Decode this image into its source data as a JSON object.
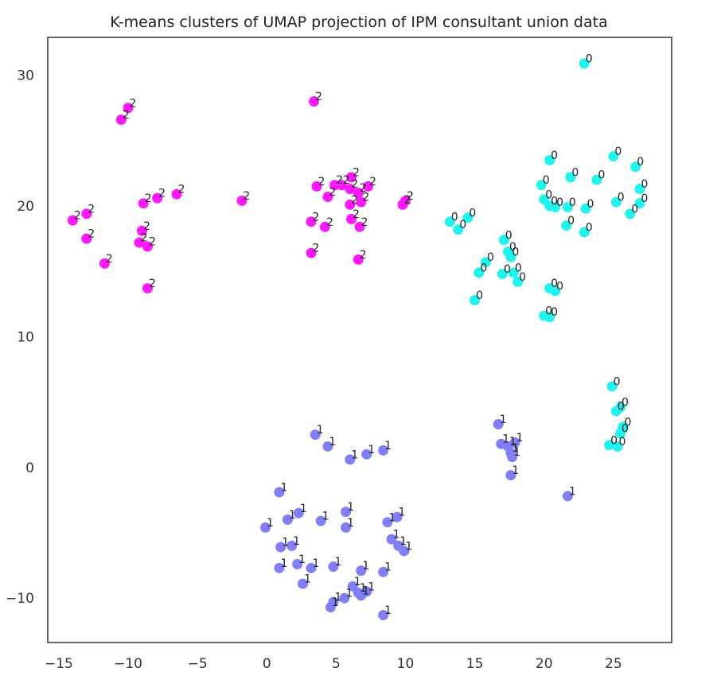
{
  "chart_data": {
    "type": "scatter",
    "title": "K-means clusters of UMAP projection of IPM consultant union data",
    "xlabel": "",
    "ylabel": "",
    "xlim": [
      -15.8,
      29.2
    ],
    "ylim": [
      -13.4,
      32.9
    ],
    "xticks": [
      -15,
      -10,
      -5,
      0,
      5,
      10,
      15,
      20,
      25
    ],
    "yticks": [
      -10,
      0,
      10,
      20,
      30
    ],
    "xtick_labels": [
      "−15",
      "−10",
      "−5",
      "0",
      "5",
      "10",
      "15",
      "20",
      "25"
    ],
    "ytick_labels": [
      "−10",
      "0",
      "10",
      "20",
      "30"
    ],
    "grid": false,
    "legend": false,
    "point_label_source": "cluster",
    "series": [
      {
        "cluster": "0",
        "color": "#1ff4ee",
        "points": [
          [
            22.9,
            30.9
          ],
          [
            20.4,
            23.5
          ],
          [
            21.9,
            22.2
          ],
          [
            23.8,
            22.0
          ],
          [
            25.0,
            23.8
          ],
          [
            26.6,
            23.0
          ],
          [
            26.9,
            21.3
          ],
          [
            19.8,
            21.6
          ],
          [
            20.0,
            20.5
          ],
          [
            20.4,
            20.0
          ],
          [
            20.8,
            19.9
          ],
          [
            21.7,
            19.9
          ],
          [
            23.0,
            19.8
          ],
          [
            25.2,
            20.3
          ],
          [
            26.9,
            20.2
          ],
          [
            26.2,
            19.4
          ],
          [
            21.6,
            18.5
          ],
          [
            22.9,
            18.0
          ],
          [
            13.2,
            18.8
          ],
          [
            13.8,
            18.2
          ],
          [
            14.5,
            19.1
          ],
          [
            17.1,
            17.4
          ],
          [
            17.4,
            16.5
          ],
          [
            17.6,
            16.1
          ],
          [
            15.8,
            15.7
          ],
          [
            15.3,
            14.9
          ],
          [
            17.0,
            14.8
          ],
          [
            17.8,
            14.9
          ],
          [
            18.1,
            14.2
          ],
          [
            20.4,
            13.7
          ],
          [
            20.8,
            13.5
          ],
          [
            15.0,
            12.8
          ],
          [
            20.0,
            11.6
          ],
          [
            20.4,
            11.5
          ],
          [
            24.9,
            6.2
          ],
          [
            25.2,
            4.3
          ],
          [
            25.5,
            4.6
          ],
          [
            25.7,
            3.1
          ],
          [
            25.5,
            2.6
          ],
          [
            24.7,
            1.7
          ],
          [
            25.3,
            1.6
          ]
        ]
      },
      {
        "cluster": "1",
        "color": "#7f7ff7",
        "points": [
          [
            3.5,
            2.5
          ],
          [
            4.4,
            1.6
          ],
          [
            6.0,
            0.6
          ],
          [
            7.2,
            1.0
          ],
          [
            8.4,
            1.3
          ],
          [
            16.7,
            3.3
          ],
          [
            16.9,
            1.8
          ],
          [
            17.4,
            1.6
          ],
          [
            17.6,
            1.1
          ],
          [
            17.7,
            0.8
          ],
          [
            17.9,
            1.9
          ],
          [
            17.6,
            -0.6
          ],
          [
            21.7,
            -2.2
          ],
          [
            0.9,
            -1.9
          ],
          [
            1.5,
            -4.0
          ],
          [
            2.3,
            -3.5
          ],
          [
            3.9,
            -4.1
          ],
          [
            5.7,
            -3.4
          ],
          [
            5.7,
            -4.6
          ],
          [
            -0.1,
            -4.6
          ],
          [
            1.0,
            -6.1
          ],
          [
            1.8,
            -6.0
          ],
          [
            8.7,
            -4.2
          ],
          [
            9.4,
            -3.8
          ],
          [
            9.0,
            -5.5
          ],
          [
            9.5,
            -6.0
          ],
          [
            9.9,
            -6.4
          ],
          [
            0.9,
            -7.7
          ],
          [
            2.2,
            -7.4
          ],
          [
            3.2,
            -7.7
          ],
          [
            4.8,
            -7.6
          ],
          [
            6.8,
            -7.9
          ],
          [
            8.4,
            -8.0
          ],
          [
            2.6,
            -8.9
          ],
          [
            6.2,
            -9.1
          ],
          [
            6.6,
            -9.6
          ],
          [
            7.2,
            -9.5
          ],
          [
            6.8,
            -9.8
          ],
          [
            4.8,
            -10.3
          ],
          [
            4.6,
            -10.7
          ],
          [
            5.6,
            -10.0
          ],
          [
            8.4,
            -11.3
          ]
        ]
      },
      {
        "cluster": "2",
        "color": "#ff17ff",
        "points": [
          [
            -10.0,
            27.5
          ],
          [
            -10.5,
            26.6
          ],
          [
            3.4,
            28.0
          ],
          [
            -13.0,
            19.4
          ],
          [
            -14.0,
            18.9
          ],
          [
            -13.0,
            17.5
          ],
          [
            -11.7,
            15.6
          ],
          [
            -8.9,
            20.2
          ],
          [
            -7.9,
            20.6
          ],
          [
            -6.5,
            20.9
          ],
          [
            -9.0,
            18.1
          ],
          [
            -9.2,
            17.2
          ],
          [
            -8.6,
            16.9
          ],
          [
            -8.6,
            13.7
          ],
          [
            -1.8,
            20.4
          ],
          [
            3.6,
            21.5
          ],
          [
            4.9,
            21.6
          ],
          [
            5.4,
            21.6
          ],
          [
            6.1,
            22.2
          ],
          [
            6.0,
            21.3
          ],
          [
            6.6,
            21.0
          ],
          [
            6.8,
            20.3
          ],
          [
            7.3,
            21.5
          ],
          [
            4.4,
            20.7
          ],
          [
            6.0,
            20.1
          ],
          [
            9.8,
            20.1
          ],
          [
            10.0,
            20.4
          ],
          [
            3.2,
            18.8
          ],
          [
            4.2,
            18.4
          ],
          [
            6.1,
            19.0
          ],
          [
            6.7,
            18.4
          ],
          [
            3.2,
            16.4
          ],
          [
            6.6,
            15.9
          ]
        ]
      }
    ]
  }
}
